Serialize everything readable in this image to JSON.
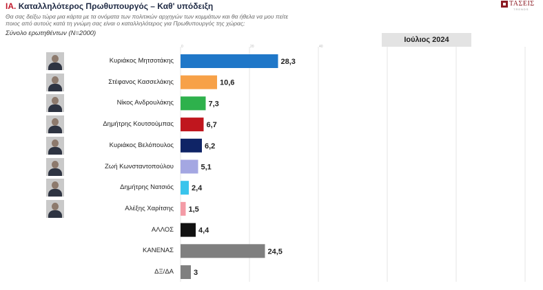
{
  "header": {
    "title_prefix": "ΙΑ.",
    "title_text": "Καταλληλότερος  Πρωθυπουργός – Καθ' υπόδειξη",
    "question_line1": "Θα σας δείξω τώρα μια κάρτα με τα ονόματα των πολιτικών αρχηγών των κομμάτων και θα ήθελα να μου πείτε",
    "question_line2": "ποιος από αυτούς κατά τη γνώμη σας είναι ο καταλληλότερος για Πρωθυπουργός της χώρας;",
    "base": "Σύνολο ερωτηθέντων (N=2000)",
    "period": "Ιούλιος 2024"
  },
  "logo": {
    "brand": "ΤΑΣΕΙΣ",
    "sub": "TRENDS"
  },
  "chart_data": {
    "type": "bar",
    "orientation": "horizontal",
    "categories": [
      "Κυριάκος Μητσοτάκης",
      "Στέφανος Κασσελάκης",
      "Νίκος Ανδρουλάκης",
      "Δημήτρης Κουτσούμπας",
      "Κυριάκος Βελόπουλος",
      "Ζωή Κωνσταντοπούλου",
      "Δημήτρης Νατσιός",
      "Αλέξης Χαρίτσης",
      "ΑΛΛΟΣ",
      "ΚΑΝΕΝΑΣ",
      "ΔΞ/ΔΑ"
    ],
    "values": [
      28.3,
      10.6,
      7.3,
      6.7,
      6.2,
      5.1,
      2.4,
      1.5,
      4.4,
      24.5,
      3
    ],
    "value_labels": [
      "28,3",
      "10,6",
      "7,3",
      "6,7",
      "6,2",
      "5,1",
      "2,4",
      "1,5",
      "4,4",
      "24,5",
      "3"
    ],
    "colors": [
      "#1f77c8",
      "#f7a148",
      "#2eb14c",
      "#c0161e",
      "#0f2466",
      "#a4a7e2",
      "#39c4ec",
      "#f39ba6",
      "#111111",
      "#7f7f7f",
      "#7f7f7f"
    ],
    "has_photo": [
      true,
      true,
      true,
      true,
      true,
      true,
      true,
      true,
      false,
      false,
      false
    ],
    "xlim": [
      0,
      100
    ],
    "xticks": [
      "0",
      "20",
      "40"
    ],
    "grid": true
  }
}
